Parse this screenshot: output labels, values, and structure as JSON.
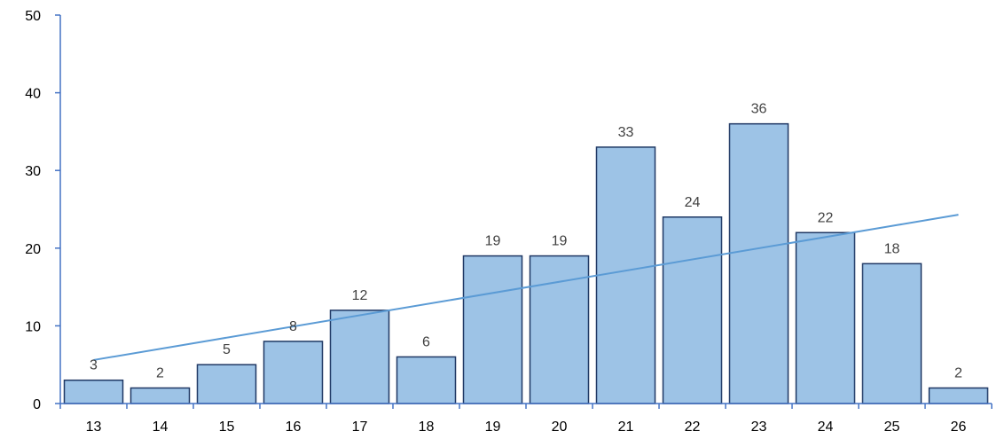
{
  "chart_data": {
    "type": "bar",
    "categories": [
      "13",
      "14",
      "15",
      "16",
      "17",
      "18",
      "19",
      "20",
      "21",
      "22",
      "23",
      "24",
      "25",
      "26"
    ],
    "values": [
      3,
      2,
      5,
      8,
      12,
      6,
      19,
      19,
      33,
      24,
      36,
      22,
      18,
      2
    ],
    "ylim": [
      0,
      50
    ],
    "y_ticks": [
      0,
      10,
      20,
      30,
      40,
      50
    ],
    "trendline": {
      "type": "linear",
      "start": 5.6,
      "end": 24.3
    },
    "grid": false,
    "legend": "none",
    "colors": {
      "bar_fill": "#9dc3e6",
      "bar_stroke": "#1f3864",
      "axis": "#4472c4",
      "trendline": "#5b9bd5"
    }
  }
}
